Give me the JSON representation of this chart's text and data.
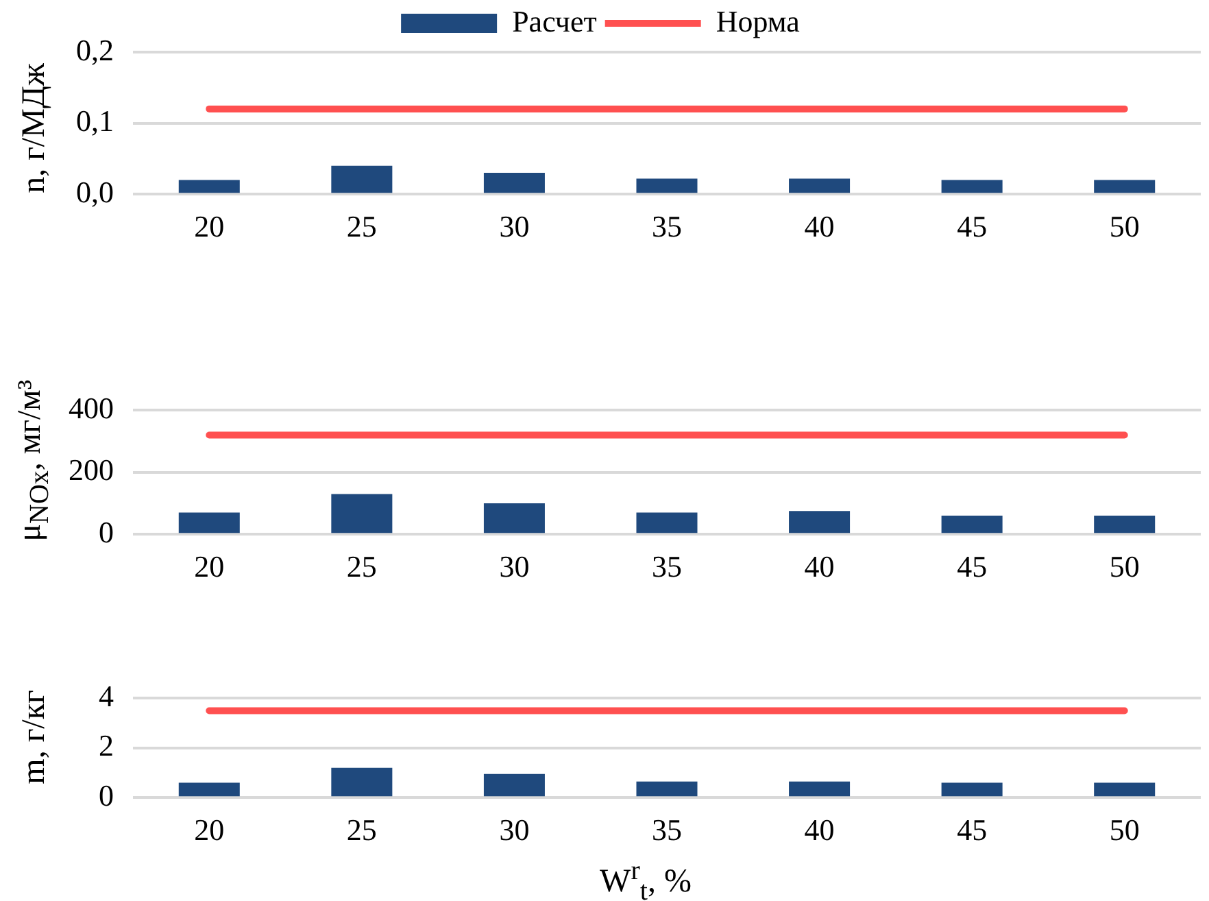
{
  "chart_data": [
    {
      "type": "bar",
      "categories": [
        "20",
        "25",
        "30",
        "35",
        "40",
        "45",
        "50"
      ],
      "ylabel": "n, г/МДж",
      "ylim": [
        0,
        0.2
      ],
      "yticks": [
        {
          "value": 0,
          "label": "0,0"
        },
        {
          "value": 0.1,
          "label": "0,1"
        },
        {
          "value": 0.2,
          "label": "0,2"
        }
      ],
      "grid": "y",
      "legend": "top",
      "series": [
        {
          "name": "Расчет",
          "color": "#1f497d",
          "values": [
            0.02,
            0.04,
            0.03,
            0.022,
            0.022,
            0.02,
            0.02
          ]
        },
        {
          "name": "Норма",
          "type": "line",
          "color": "#ff5050",
          "values": [
            0.12,
            0.12,
            0.12,
            0.12,
            0.12,
            0.12,
            0.12
          ]
        }
      ]
    },
    {
      "type": "bar",
      "categories": [
        "20",
        "25",
        "30",
        "35",
        "40",
        "45",
        "50"
      ],
      "ylabel": "μ$_{NOx}$, мг/м³",
      "ylim": [
        0,
        400
      ],
      "yticks": [
        0,
        200,
        400
      ],
      "grid": "y",
      "series": [
        {
          "color": "#1f497d",
          "values": [
            70,
            130,
            100,
            70,
            75,
            60,
            60
          ]
        },
        {
          "type": "line",
          "color": "#ff5050",
          "values": [
            320,
            320,
            320,
            320,
            320,
            320,
            320
          ]
        }
      ]
    },
    {
      "type": "bar",
      "categories": [
        "20",
        "25",
        "30",
        "35",
        "40",
        "45",
        "50"
      ],
      "ylabel": "m, г/кг",
      "xlabel": "W$^{r}$$_{t}$, %",
      "ylim": [
        0,
        4
      ],
      "yticks": [
        0,
        2,
        4
      ],
      "grid": "y",
      "series": [
        {
          "color": "#1f497d",
          "values": [
            0.6,
            1.2,
            0.95,
            0.65,
            0.65,
            0.6,
            0.6
          ]
        },
        {
          "type": "line",
          "color": "#ff5050",
          "values": [
            3.5,
            3.5,
            3.5,
            3.5,
            3.5,
            3.5,
            3.5
          ]
        }
      ]
    }
  ]
}
